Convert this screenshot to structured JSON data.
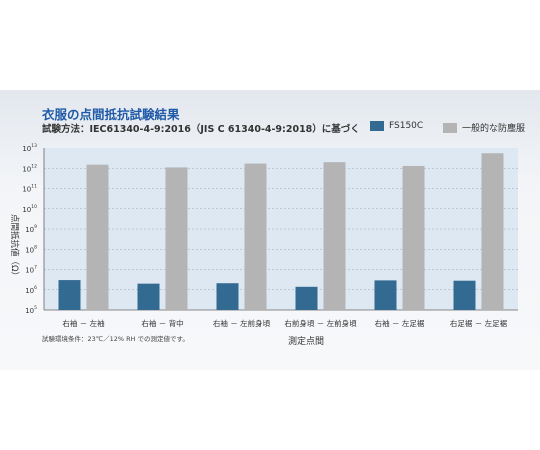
{
  "header": {
    "title": "衣服の点間抵抗試験結果",
    "subtitle": "試験方法：IEC61340-4-9:2016（JIS C 61340-4-9:2018）に基づく"
  },
  "footnote": "試験環境条件：23℃／12% RH での測定値です。",
  "colors": {
    "fs150c": "#336a92",
    "general": "#b4b4b4"
  },
  "chart_data": {
    "type": "bar",
    "title": "衣服の点間抵抗試験結果",
    "xlabel": "測定点間",
    "ylabel": "点間抵抗値（Ω）",
    "y_scale": "log",
    "ylim": [
      100000,
      10000000000000
    ],
    "y_ticks": [
      {
        "value": 100000,
        "mantissa": "10",
        "exp": "5"
      },
      {
        "value": 1000000,
        "mantissa": "10",
        "exp": "6"
      },
      {
        "value": 10000000,
        "mantissa": "10",
        "exp": "7"
      },
      {
        "value": 100000000,
        "mantissa": "10",
        "exp": "8"
      },
      {
        "value": 1000000000,
        "mantissa": "10",
        "exp": "9"
      },
      {
        "value": 10000000000,
        "mantissa": "10",
        "exp": "10"
      },
      {
        "value": 100000000000,
        "mantissa": "10",
        "exp": "11"
      },
      {
        "value": 1000000000000,
        "mantissa": "10",
        "exp": "12"
      },
      {
        "value": 10000000000000,
        "mantissa": "10",
        "exp": "13"
      }
    ],
    "grid": true,
    "legend_position": "top-right",
    "categories": [
      "右袖 － 左袖",
      "右袖 － 背中",
      "右袖 － 左前身頃",
      "右前身頃 － 左前身頃",
      "右袖 － 左足裾",
      "右足裾 － 左足裾"
    ],
    "series": [
      {
        "name": "FS150C",
        "values": [
          3000000,
          2000000,
          2100000,
          1400000,
          2900000,
          2800000
        ]
      },
      {
        "name": "一般的な防塵服",
        "values": [
          1500000000000,
          1100000000000,
          1700000000000,
          2000000000000,
          1300000000000,
          5500000000000
        ]
      }
    ]
  }
}
